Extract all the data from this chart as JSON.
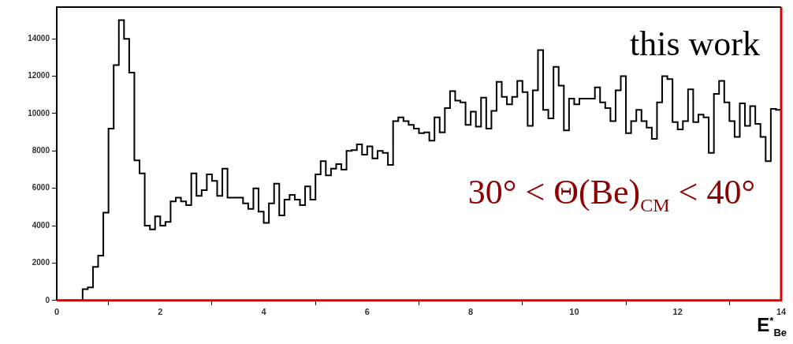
{
  "chart_data": {
    "type": "histogram",
    "xlabel": "E$^{*}$$_{Be}$",
    "annotations": [
      "this work",
      "30° < Θ(Be)$_{CM}$ < 40°"
    ],
    "color": "#000000",
    "bins": [
      0,
      0.1,
      0.2,
      0.3,
      0.4,
      0.5,
      0.6,
      0.7,
      0.8,
      0.9,
      1,
      1.1,
      1.2,
      1.3,
      1.4,
      1.5,
      1.6,
      1.7,
      1.8,
      1.9,
      2,
      2.1,
      2.2,
      2.3,
      2.4,
      2.5,
      2.6,
      2.7,
      2.8,
      2.9,
      3,
      3.1,
      3.2,
      3.3,
      3.4,
      3.5,
      3.6,
      3.7,
      3.8,
      3.9,
      4,
      4.1,
      4.2,
      4.3,
      4.4,
      4.5,
      4.6,
      4.7,
      4.8,
      4.9,
      5,
      5.1,
      5.2,
      5.3,
      5.4,
      5.5,
      5.6,
      5.7,
      5.8,
      5.9,
      6,
      6.1,
      6.2,
      6.3,
      6.4,
      6.5,
      6.6,
      6.7,
      6.8,
      6.9,
      7,
      7.1,
      7.2,
      7.3,
      7.4,
      7.5,
      7.6,
      7.7,
      7.8,
      7.9,
      8,
      8.1,
      8.2,
      8.3,
      8.4,
      8.5,
      8.6,
      8.7,
      8.8,
      8.9,
      9,
      9.1,
      9.2,
      9.3,
      9.4,
      9.5,
      9.6,
      9.7,
      9.8,
      9.9,
      10,
      10.1,
      10.2,
      10.3,
      10.4,
      10.5,
      10.6,
      10.7,
      10.8,
      10.9,
      11,
      11.1,
      11.2,
      11.3,
      11.4,
      11.5,
      11.6,
      11.7,
      11.8,
      11.9,
      12,
      12.1,
      12.2,
      12.3,
      12.4,
      12.5,
      12.6,
      12.7,
      12.8,
      12.9,
      13,
      13.1,
      13.2,
      13.3,
      13.4,
      13.5,
      13.6,
      13.7,
      13.8,
      13.9,
      14
    ],
    "values": [
      0,
      0,
      0,
      0,
      0,
      600,
      700,
      1800,
      2400,
      4700,
      9200,
      12600,
      15000,
      14000,
      12200,
      7500,
      6800,
      4000,
      3800,
      4500,
      4000,
      4200,
      5300,
      5500,
      5300,
      5100,
      6800,
      5600,
      5900,
      6750,
      6400,
      5600,
      7050,
      5500,
      5500,
      5500,
      5200,
      4900,
      6000,
      4750,
      4150,
      5200,
      6250,
      4550,
      5400,
      5650,
      5400,
      5100,
      6100,
      5400,
      6750,
      7450,
      6700,
      7050,
      7300,
      7000,
      8000,
      8050,
      8350,
      7800,
      8250,
      7600,
      8000,
      7900,
      7250,
      9600,
      9800,
      9600,
      9400,
      9200,
      8950,
      9000,
      8550,
      9800,
      9000,
      10300,
      11200,
      10700,
      10600,
      9400,
      10100,
      9300,
      10850,
      9200,
      10150,
      11700,
      10900,
      10500,
      10900,
      11750,
      11150,
      9350,
      11250,
      13400,
      10200,
      9750,
      12500,
      11500,
      9100,
      10800,
      10500,
      10800,
      10800,
      10800,
      11400,
      10600,
      10300,
      9600,
      11250,
      12000,
      8950,
      9600,
      10200,
      9600,
      9250,
      8650,
      10600,
      12000,
      11850,
      9550,
      9150,
      9600,
      11300,
      9550,
      9950,
      9800,
      7900,
      11050,
      11750,
      10600,
      9600,
      8750,
      10550,
      9350,
      10400,
      9450,
      8750,
      7450,
      10250,
      10200
    ],
    "xlim": [
      0,
      14
    ],
    "xticks": [
      0,
      2,
      4,
      6,
      8,
      10,
      12,
      14
    ],
    "ylim": [
      0,
      15700
    ],
    "yticks": [
      0,
      2000,
      4000,
      6000,
      8000,
      10000,
      12000,
      14000
    ]
  }
}
